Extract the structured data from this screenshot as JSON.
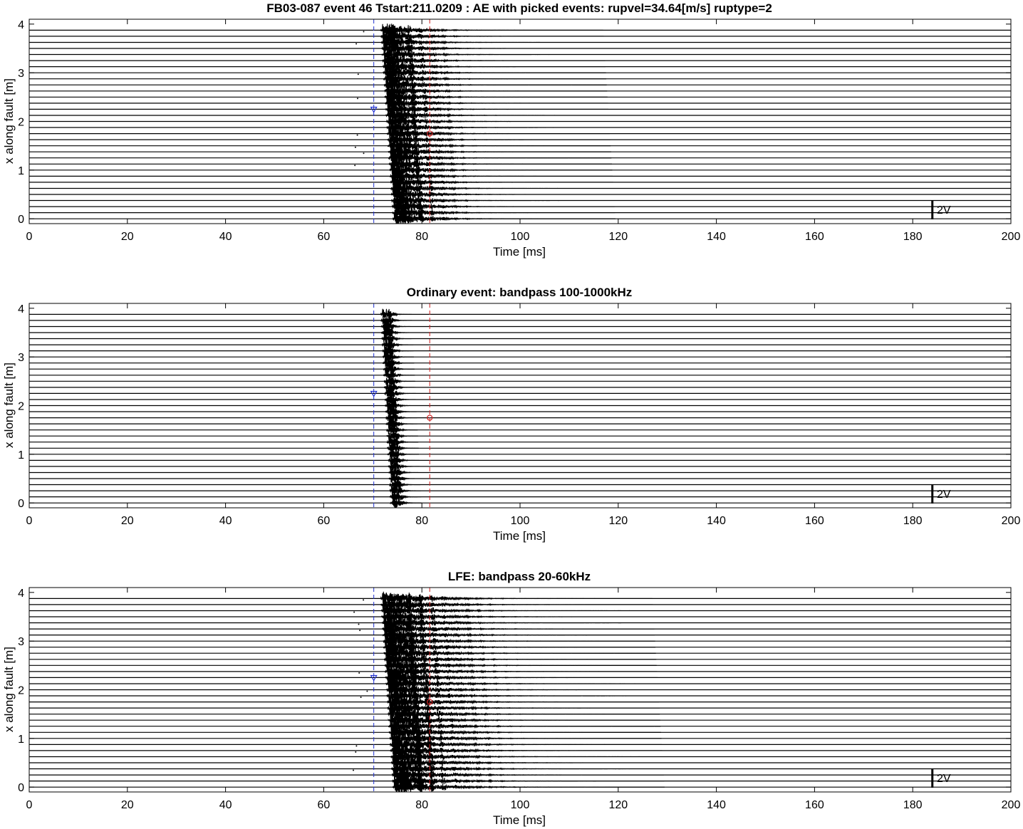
{
  "chart_data": [
    {
      "type": "line",
      "title": "FB03-087 event 46 Tstart:211.0209 : AE with picked events: rupvel=34.64[m/s] ruptype=2",
      "xlabel": "Time [ms]",
      "ylabel": "x along fault [m]",
      "xlim": [
        0,
        200
      ],
      "ylim": [
        -0.1,
        4.1
      ],
      "xticks": [
        0,
        20,
        40,
        60,
        80,
        100,
        120,
        140,
        160,
        180,
        200
      ],
      "yticks": [
        0,
        1,
        2,
        3,
        4
      ],
      "grid": false,
      "trace_count": 32,
      "trace_spacing_m": 0.125,
      "onset_ms_bottom": 74.5,
      "onset_ms_top": 72.0,
      "coda_ms": 45,
      "pick_blue_ms": 70.2,
      "pick_red_ms": 81.6,
      "marker_blue_x_m": 2.25,
      "marker_red_x_m": 1.75,
      "scale_bar": {
        "label": "2V",
        "x_ms": 184
      }
    },
    {
      "type": "line",
      "title": "Ordinary event: bandpass 100-1000kHz",
      "xlabel": "Time [ms]",
      "ylabel": "x along fault [m]",
      "xlim": [
        0,
        200
      ],
      "ylim": [
        -0.1,
        4.1
      ],
      "xticks": [
        0,
        20,
        40,
        60,
        80,
        100,
        120,
        140,
        160,
        180,
        200
      ],
      "yticks": [
        0,
        1,
        2,
        3,
        4
      ],
      "grid": false,
      "trace_count": 32,
      "trace_spacing_m": 0.125,
      "onset_ms_bottom": 74.0,
      "onset_ms_top": 72.0,
      "coda_ms": 6,
      "pick_blue_ms": 70.2,
      "pick_red_ms": 81.6,
      "marker_blue_x_m": 2.25,
      "marker_red_x_m": 1.75,
      "scale_bar": {
        "label": "2V",
        "x_ms": 184
      }
    },
    {
      "type": "line",
      "title": "LFE: bandpass 20-60kHz",
      "xlabel": "Time [ms]",
      "ylabel": "x along fault [m]",
      "xlim": [
        0,
        200
      ],
      "ylim": [
        -0.1,
        4.1
      ],
      "xticks": [
        0,
        20,
        40,
        60,
        80,
        100,
        120,
        140,
        160,
        180,
        200
      ],
      "yticks": [
        0,
        1,
        2,
        3,
        4
      ],
      "grid": false,
      "trace_count": 32,
      "trace_spacing_m": 0.125,
      "onset_ms_bottom": 74.5,
      "onset_ms_top": 72.0,
      "coda_ms": 55,
      "pick_blue_ms": 70.2,
      "pick_red_ms": 81.6,
      "marker_blue_x_m": 2.25,
      "marker_red_x_m": 1.75,
      "scale_bar": {
        "label": "2V",
        "x_ms": 184
      }
    }
  ],
  "colors": {
    "trace": "#000000",
    "pick_blue": "#1f2fd0",
    "pick_red": "#d02020",
    "axes": "#000000"
  }
}
